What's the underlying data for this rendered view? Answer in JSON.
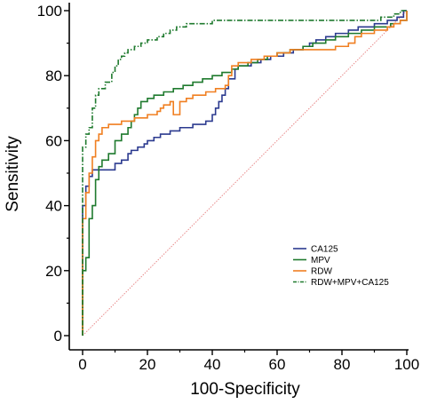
{
  "chart_data": {
    "type": "line",
    "title": "",
    "xlabel": "100-Specificity",
    "ylabel": "Sensitivity",
    "xlim": [
      0,
      100
    ],
    "ylim": [
      0,
      100
    ],
    "xticks": [
      0,
      20,
      40,
      60,
      80,
      100
    ],
    "yticks": [
      0,
      20,
      40,
      60,
      80,
      100
    ],
    "x_tick_labels": [
      "0",
      "20",
      "40",
      "60",
      "80",
      "100"
    ],
    "y_tick_labels": [
      "0",
      "20",
      "40",
      "60",
      "80",
      "100"
    ],
    "grid": false,
    "legend_position": "bottom-right",
    "reference_line": {
      "color": "#e88a8a",
      "points": [
        [
          0,
          0
        ],
        [
          100,
          100
        ]
      ]
    },
    "series": [
      {
        "name": "CA125",
        "color": "#2b3a8f",
        "dash": "solid",
        "points": [
          [
            0,
            0
          ],
          [
            0,
            40
          ],
          [
            1,
            40
          ],
          [
            1,
            46
          ],
          [
            2,
            46
          ],
          [
            2,
            49
          ],
          [
            3,
            49
          ],
          [
            3,
            51
          ],
          [
            5,
            51
          ],
          [
            8,
            51
          ],
          [
            10,
            51
          ],
          [
            10,
            53
          ],
          [
            12,
            53
          ],
          [
            12,
            54
          ],
          [
            14,
            54
          ],
          [
            14,
            56
          ],
          [
            15,
            56
          ],
          [
            15,
            57
          ],
          [
            17,
            57
          ],
          [
            17,
            58
          ],
          [
            19,
            58
          ],
          [
            19,
            59
          ],
          [
            20,
            59
          ],
          [
            20,
            60
          ],
          [
            22,
            60
          ],
          [
            22,
            61
          ],
          [
            24,
            61
          ],
          [
            24,
            62
          ],
          [
            27,
            62
          ],
          [
            27,
            63
          ],
          [
            30,
            63
          ],
          [
            30,
            64
          ],
          [
            34,
            64
          ],
          [
            34,
            65
          ],
          [
            38,
            65
          ],
          [
            38,
            66
          ],
          [
            40,
            66
          ],
          [
            40,
            68
          ],
          [
            41,
            68
          ],
          [
            41,
            70
          ],
          [
            42,
            70
          ],
          [
            42,
            72
          ],
          [
            43,
            72
          ],
          [
            43,
            74
          ],
          [
            44,
            74
          ],
          [
            44,
            76
          ],
          [
            45,
            76
          ],
          [
            45,
            79
          ],
          [
            47,
            79
          ],
          [
            47,
            82
          ],
          [
            48,
            82
          ],
          [
            48,
            83
          ],
          [
            52,
            83
          ],
          [
            52,
            84
          ],
          [
            55,
            84
          ],
          [
            55,
            85
          ],
          [
            58,
            85
          ],
          [
            58,
            86
          ],
          [
            62,
            86
          ],
          [
            62,
            87
          ],
          [
            65,
            87
          ],
          [
            65,
            88
          ],
          [
            68,
            88
          ],
          [
            68,
            89
          ],
          [
            70,
            89
          ],
          [
            70,
            90
          ],
          [
            72,
            90
          ],
          [
            72,
            91
          ],
          [
            75,
            91
          ],
          [
            75,
            92
          ],
          [
            78,
            92
          ],
          [
            78,
            93
          ],
          [
            82,
            93
          ],
          [
            82,
            94
          ],
          [
            85,
            94
          ],
          [
            85,
            95
          ],
          [
            90,
            95
          ],
          [
            90,
            96
          ],
          [
            94,
            96
          ],
          [
            94,
            97
          ],
          [
            97,
            97
          ],
          [
            97,
            98
          ],
          [
            99,
            98
          ],
          [
            99,
            100
          ],
          [
            100,
            100
          ]
        ]
      },
      {
        "name": "MPV",
        "color": "#1f7a2e",
        "dash": "solid",
        "points": [
          [
            0,
            0
          ],
          [
            0,
            20
          ],
          [
            1,
            20
          ],
          [
            1,
            24
          ],
          [
            2,
            24
          ],
          [
            2,
            36
          ],
          [
            3,
            36
          ],
          [
            3,
            40
          ],
          [
            4,
            40
          ],
          [
            4,
            48
          ],
          [
            5,
            48
          ],
          [
            5,
            52
          ],
          [
            6,
            52
          ],
          [
            6,
            54
          ],
          [
            8,
            54
          ],
          [
            8,
            56
          ],
          [
            10,
            56
          ],
          [
            10,
            60
          ],
          [
            12,
            60
          ],
          [
            12,
            62
          ],
          [
            14,
            62
          ],
          [
            14,
            64
          ],
          [
            15,
            64
          ],
          [
            15,
            66
          ],
          [
            16,
            66
          ],
          [
            16,
            68
          ],
          [
            17,
            68
          ],
          [
            17,
            70
          ],
          [
            18,
            70
          ],
          [
            18,
            72
          ],
          [
            20,
            72
          ],
          [
            20,
            73
          ],
          [
            22,
            73
          ],
          [
            22,
            74
          ],
          [
            25,
            74
          ],
          [
            25,
            75
          ],
          [
            28,
            75
          ],
          [
            28,
            76
          ],
          [
            31,
            76
          ],
          [
            31,
            77
          ],
          [
            34,
            77
          ],
          [
            34,
            78
          ],
          [
            37,
            78
          ],
          [
            37,
            79
          ],
          [
            40,
            79
          ],
          [
            40,
            80
          ],
          [
            43,
            80
          ],
          [
            43,
            81
          ],
          [
            46,
            81
          ],
          [
            46,
            82
          ],
          [
            48,
            82
          ],
          [
            48,
            83
          ],
          [
            51,
            83
          ],
          [
            51,
            84
          ],
          [
            54,
            84
          ],
          [
            54,
            85
          ],
          [
            57,
            85
          ],
          [
            57,
            86
          ],
          [
            60,
            86
          ],
          [
            60,
            87
          ],
          [
            64,
            87
          ],
          [
            64,
            88
          ],
          [
            68,
            88
          ],
          [
            68,
            89
          ],
          [
            71,
            89
          ],
          [
            71,
            90
          ],
          [
            75,
            90
          ],
          [
            75,
            91
          ],
          [
            78,
            91
          ],
          [
            78,
            92
          ],
          [
            82,
            92
          ],
          [
            82,
            93
          ],
          [
            86,
            93
          ],
          [
            86,
            94
          ],
          [
            90,
            94
          ],
          [
            90,
            95
          ],
          [
            95,
            95
          ],
          [
            95,
            96
          ],
          [
            98,
            96
          ],
          [
            98,
            97
          ],
          [
            100,
            97
          ],
          [
            100,
            100
          ]
        ]
      },
      {
        "name": "RDW",
        "color": "#f07f21",
        "dash": "solid",
        "points": [
          [
            0,
            0
          ],
          [
            0,
            36
          ],
          [
            1,
            36
          ],
          [
            1,
            44
          ],
          [
            2,
            44
          ],
          [
            2,
            50
          ],
          [
            3,
            50
          ],
          [
            3,
            55
          ],
          [
            4,
            55
          ],
          [
            4,
            60
          ],
          [
            5,
            60
          ],
          [
            5,
            62
          ],
          [
            6,
            62
          ],
          [
            6,
            64
          ],
          [
            8,
            64
          ],
          [
            8,
            65
          ],
          [
            12,
            65
          ],
          [
            12,
            66
          ],
          [
            16,
            66
          ],
          [
            16,
            67
          ],
          [
            20,
            67
          ],
          [
            20,
            68
          ],
          [
            23,
            68
          ],
          [
            23,
            69
          ],
          [
            24,
            69
          ],
          [
            24,
            70
          ],
          [
            25,
            70
          ],
          [
            25,
            71
          ],
          [
            27,
            71
          ],
          [
            27,
            72
          ],
          [
            28,
            72
          ],
          [
            28,
            68
          ],
          [
            30,
            68
          ],
          [
            30,
            72
          ],
          [
            32,
            72
          ],
          [
            32,
            73
          ],
          [
            34,
            73
          ],
          [
            34,
            74
          ],
          [
            38,
            74
          ],
          [
            38,
            75
          ],
          [
            41,
            75
          ],
          [
            41,
            76
          ],
          [
            44,
            76
          ],
          [
            44,
            77
          ],
          [
            45,
            77
          ],
          [
            45,
            80
          ],
          [
            46,
            80
          ],
          [
            46,
            83
          ],
          [
            48,
            83
          ],
          [
            48,
            84
          ],
          [
            52,
            84
          ],
          [
            52,
            85
          ],
          [
            56,
            85
          ],
          [
            56,
            86
          ],
          [
            60,
            86
          ],
          [
            60,
            87
          ],
          [
            64,
            87
          ],
          [
            64,
            88
          ],
          [
            78,
            88
          ],
          [
            78,
            89
          ],
          [
            82,
            89
          ],
          [
            82,
            90
          ],
          [
            84,
            90
          ],
          [
            84,
            92
          ],
          [
            86,
            92
          ],
          [
            86,
            93
          ],
          [
            90,
            93
          ],
          [
            90,
            94
          ],
          [
            94,
            94
          ],
          [
            94,
            95
          ],
          [
            96,
            95
          ],
          [
            96,
            96
          ],
          [
            98,
            96
          ],
          [
            98,
            97
          ],
          [
            100,
            97
          ],
          [
            100,
            100
          ]
        ]
      },
      {
        "name": "RDW+MPV+CA125",
        "color": "#1f7a2e",
        "dash": "dashdot",
        "points": [
          [
            0,
            0
          ],
          [
            0,
            58
          ],
          [
            1,
            58
          ],
          [
            1,
            62
          ],
          [
            2,
            62
          ],
          [
            2,
            64
          ],
          [
            3,
            64
          ],
          [
            3,
            70
          ],
          [
            4,
            70
          ],
          [
            4,
            74
          ],
          [
            5,
            74
          ],
          [
            5,
            76
          ],
          [
            7,
            76
          ],
          [
            7,
            78
          ],
          [
            9,
            78
          ],
          [
            9,
            81
          ],
          [
            10,
            81
          ],
          [
            10,
            83
          ],
          [
            11,
            83
          ],
          [
            11,
            85
          ],
          [
            12,
            85
          ],
          [
            12,
            86
          ],
          [
            13,
            86
          ],
          [
            13,
            87
          ],
          [
            14,
            87
          ],
          [
            14,
            88
          ],
          [
            16,
            88
          ],
          [
            16,
            89
          ],
          [
            18,
            89
          ],
          [
            18,
            90
          ],
          [
            20,
            90
          ],
          [
            20,
            91
          ],
          [
            23,
            91
          ],
          [
            23,
            92
          ],
          [
            25,
            92
          ],
          [
            25,
            93
          ],
          [
            27,
            93
          ],
          [
            27,
            94
          ],
          [
            29,
            94
          ],
          [
            29,
            95
          ],
          [
            32,
            95
          ],
          [
            32,
            96
          ],
          [
            40,
            96
          ],
          [
            40,
            97
          ],
          [
            60,
            97
          ],
          [
            80,
            97
          ],
          [
            92,
            97
          ],
          [
            92,
            98
          ],
          [
            96,
            98
          ],
          [
            96,
            99
          ],
          [
            98,
            99
          ],
          [
            98,
            100
          ],
          [
            100,
            100
          ]
        ]
      }
    ]
  }
}
